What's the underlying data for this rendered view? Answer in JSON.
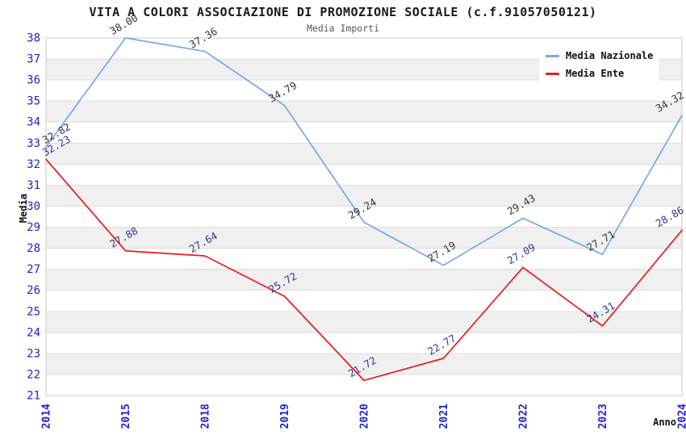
{
  "chart_data": {
    "type": "line",
    "title": "VITA A COLORI ASSOCIAZIONE DI PROMOZIONE SOCIALE (c.f.91057050121)",
    "subtitle": "Media Importi",
    "xlabel": "Anno",
    "ylabel": "Media",
    "categories": [
      "2014",
      "2015",
      "2018",
      "2019",
      "2020",
      "2021",
      "2022",
      "2023",
      "2024"
    ],
    "series": [
      {
        "name": "Media Nazionale",
        "color": "#75A9E6",
        "label_color": "#333333",
        "values": [
          32.82,
          38.0,
          37.36,
          34.79,
          29.24,
          27.19,
          29.43,
          27.71,
          34.32
        ]
      },
      {
        "name": "Media Ente",
        "color": "#EC1A1A",
        "label_color": "#333399",
        "values": [
          32.23,
          27.88,
          27.64,
          25.72,
          21.72,
          22.77,
          27.09,
          24.31,
          28.86
        ]
      }
    ],
    "ylim": [
      21,
      38
    ],
    "ytick_step": 1,
    "grid": {
      "band_colors": [
        "#ffffff",
        "#f0f0f0"
      ],
      "line_color": "#dddddd",
      "border_color": "#c8c8c8"
    },
    "axis_tick_color": "#1f1fd3",
    "legend": {
      "position": "top-right",
      "background": "#ffffff"
    }
  }
}
